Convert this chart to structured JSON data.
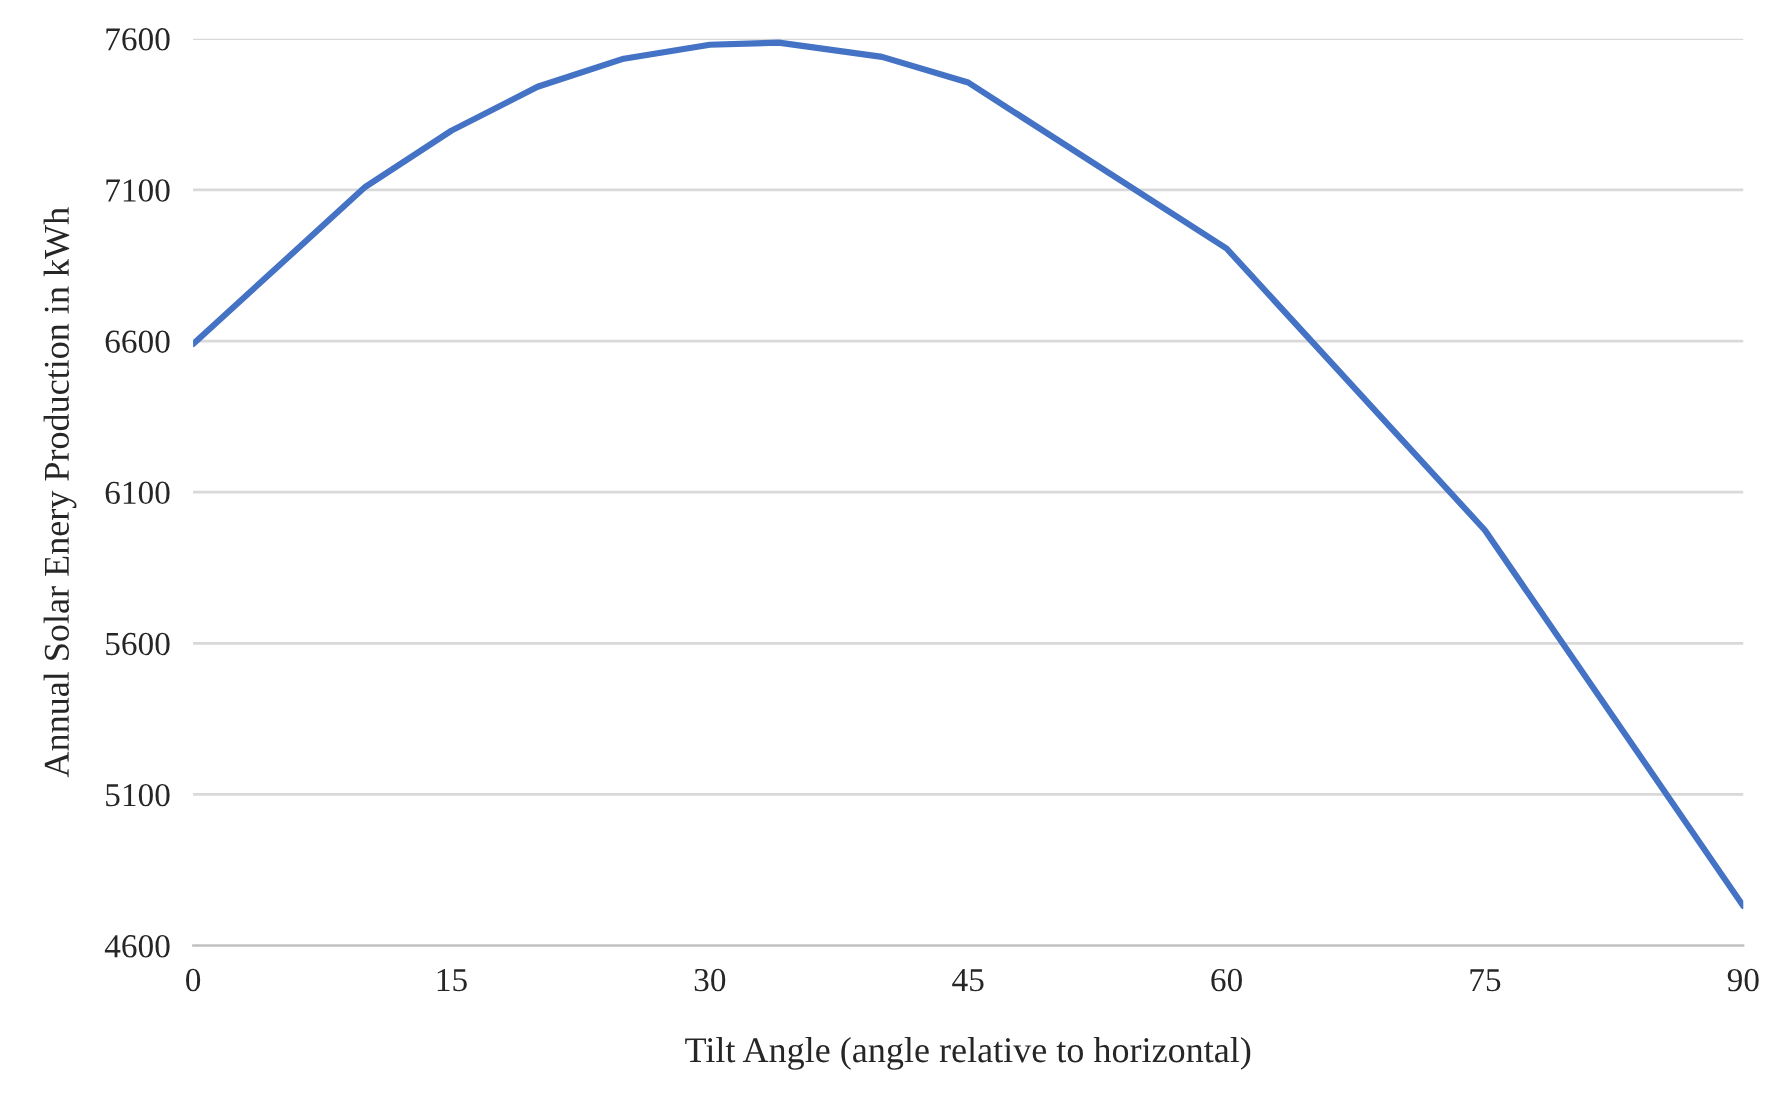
{
  "chart_data": {
    "type": "line",
    "xlabel": "Tilt Angle (angle relative to horizontal)",
    "ylabel": "Annual Solar Enery Production in kWh",
    "x": [
      0,
      10,
      15,
      20,
      25,
      30,
      34,
      40,
      45,
      60,
      75,
      90
    ],
    "series": [
      {
        "color": "#4472c4",
        "values": [
          6590,
          7110,
          7296,
          7441,
          7534,
          7580,
          7587,
          7540,
          7455,
          6906,
          5974,
          4731
        ]
      }
    ],
    "xlim": [
      0,
      90
    ],
    "xticks": [
      0,
      15,
      30,
      45,
      60,
      75,
      90
    ],
    "ylim": [
      4600,
      7600
    ],
    "yticks": [
      4600,
      5100,
      5600,
      6100,
      6600,
      7100,
      7600
    ],
    "grid": "y",
    "marker": "none",
    "line_style": "solid"
  }
}
